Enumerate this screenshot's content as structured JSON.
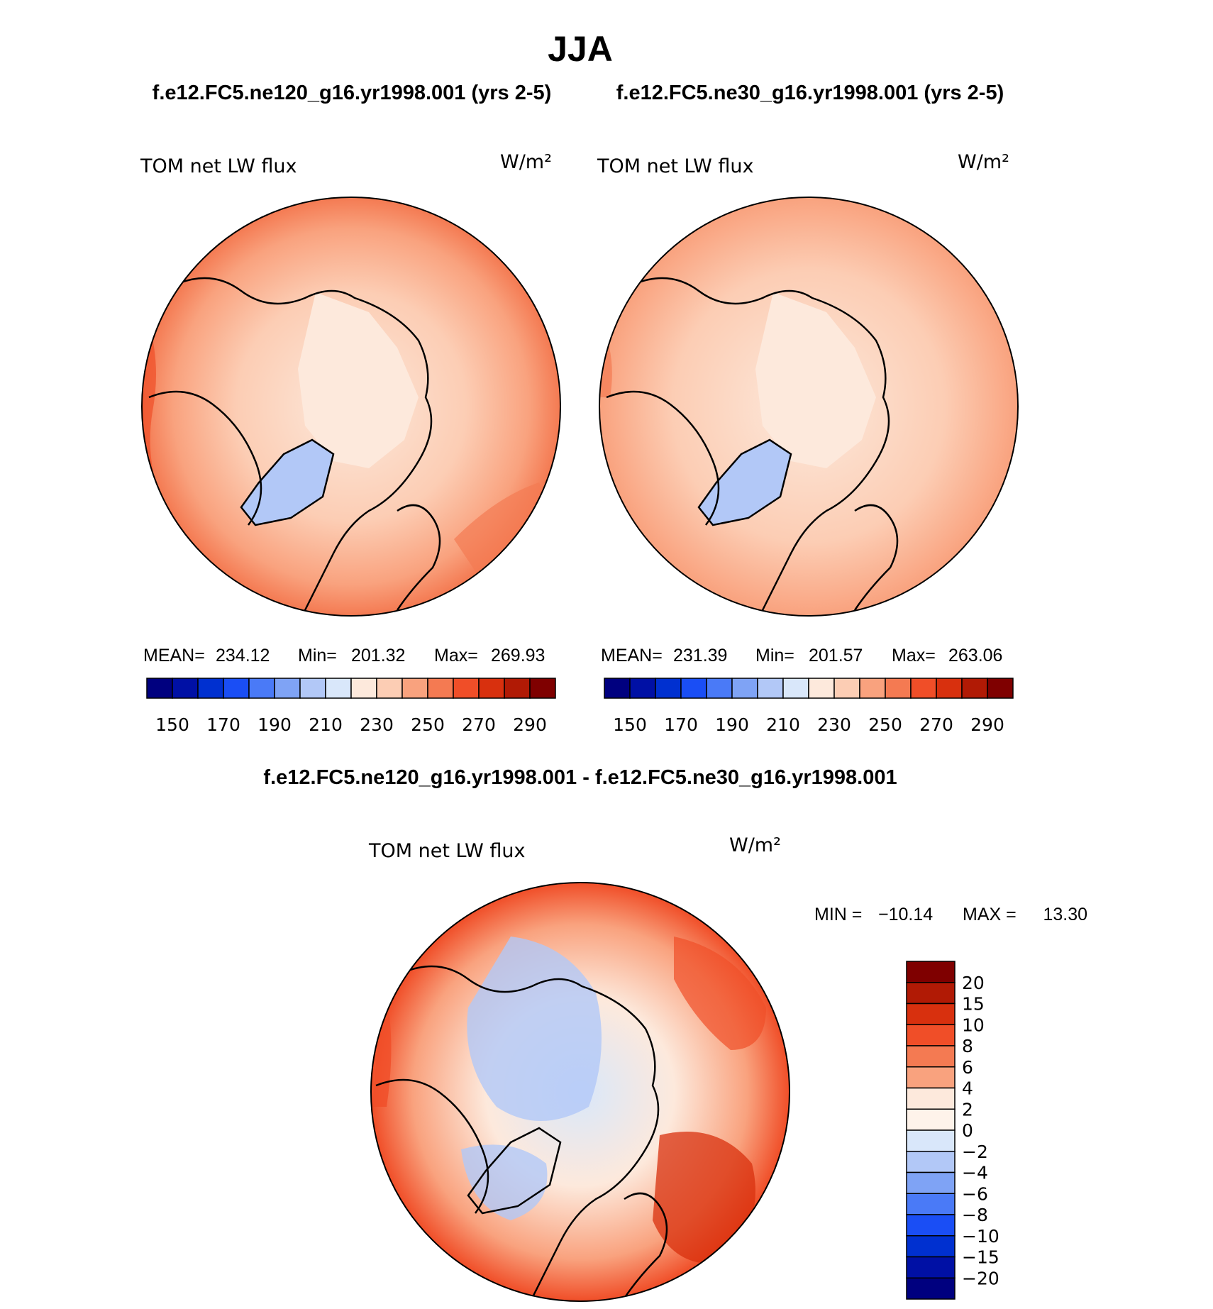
{
  "title": "JJA",
  "cases": {
    "left": "f.e12.FC5.ne120_g16.yr1998.001 (yrs 2-5)",
    "right": "f.e12.FC5.ne30_g16.yr1998.001 (yrs 2-5)",
    "diff": "f.e12.FC5.ne120_g16.yr1998.001 - f.e12.FC5.ne30_g16.yr1998.001"
  },
  "chart_data": [
    {
      "type": "heatmap",
      "projection": "north-polar-stereographic",
      "variable_label": "TOM net LW flux",
      "units_label": "W/m²",
      "stats": {
        "mean_label": "MEAN=",
        "mean": "234.12",
        "min_label": "Min=",
        "min": "201.32",
        "max_label": "Max=",
        "max": "269.93"
      },
      "colorbar": {
        "orientation": "horizontal",
        "tick_labels": [
          "150",
          "170",
          "190",
          "210",
          "230",
          "250",
          "270",
          "290"
        ],
        "colors": [
          "#00007f",
          "#0010a5",
          "#0030d0",
          "#1a4ef5",
          "#4a7af7",
          "#7fa3f5",
          "#b2c8f7",
          "#d9e7fa",
          "#fde9dc",
          "#fccdb4",
          "#f9a27e",
          "#f47a52",
          "#f04e28",
          "#d8300e",
          "#b11a05",
          "#7f0000"
        ]
      }
    },
    {
      "type": "heatmap",
      "projection": "north-polar-stereographic",
      "variable_label": "TOM net LW flux",
      "units_label": "W/m²",
      "stats": {
        "mean_label": "MEAN=",
        "mean": "231.39",
        "min_label": "Min=",
        "min": "201.57",
        "max_label": "Max=",
        "max": "263.06"
      },
      "colorbar": {
        "orientation": "horizontal",
        "tick_labels": [
          "150",
          "170",
          "190",
          "210",
          "230",
          "250",
          "270",
          "290"
        ],
        "colors": [
          "#00007f",
          "#0010a5",
          "#0030d0",
          "#1a4ef5",
          "#4a7af7",
          "#7fa3f5",
          "#b2c8f7",
          "#d9e7fa",
          "#fde9dc",
          "#fccdb4",
          "#f9a27e",
          "#f47a52",
          "#f04e28",
          "#d8300e",
          "#b11a05",
          "#7f0000"
        ]
      }
    },
    {
      "type": "heatmap",
      "projection": "north-polar-stereographic",
      "variable_label": "TOM net LW flux",
      "units_label": "W/m²",
      "stats": {
        "min_label": "MIN =",
        "min": "−10.14",
        "max_label": "MAX =",
        "max": "13.30"
      },
      "colorbar": {
        "orientation": "vertical",
        "tick_labels": [
          "20",
          "15",
          "10",
          "8",
          "6",
          "4",
          "2",
          "0",
          "−2",
          "−4",
          "−6",
          "−8",
          "−10",
          "−15",
          "−20"
        ],
        "colors": [
          "#7f0000",
          "#b11a05",
          "#d8300e",
          "#f04e28",
          "#f47a52",
          "#f9a27e",
          "#fde9dc",
          "#fef3ea",
          "#d9e7fa",
          "#b2c8f7",
          "#7fa3f5",
          "#4a7af7",
          "#1a4ef5",
          "#0030d0",
          "#0010a5",
          "#00007f"
        ]
      }
    }
  ]
}
